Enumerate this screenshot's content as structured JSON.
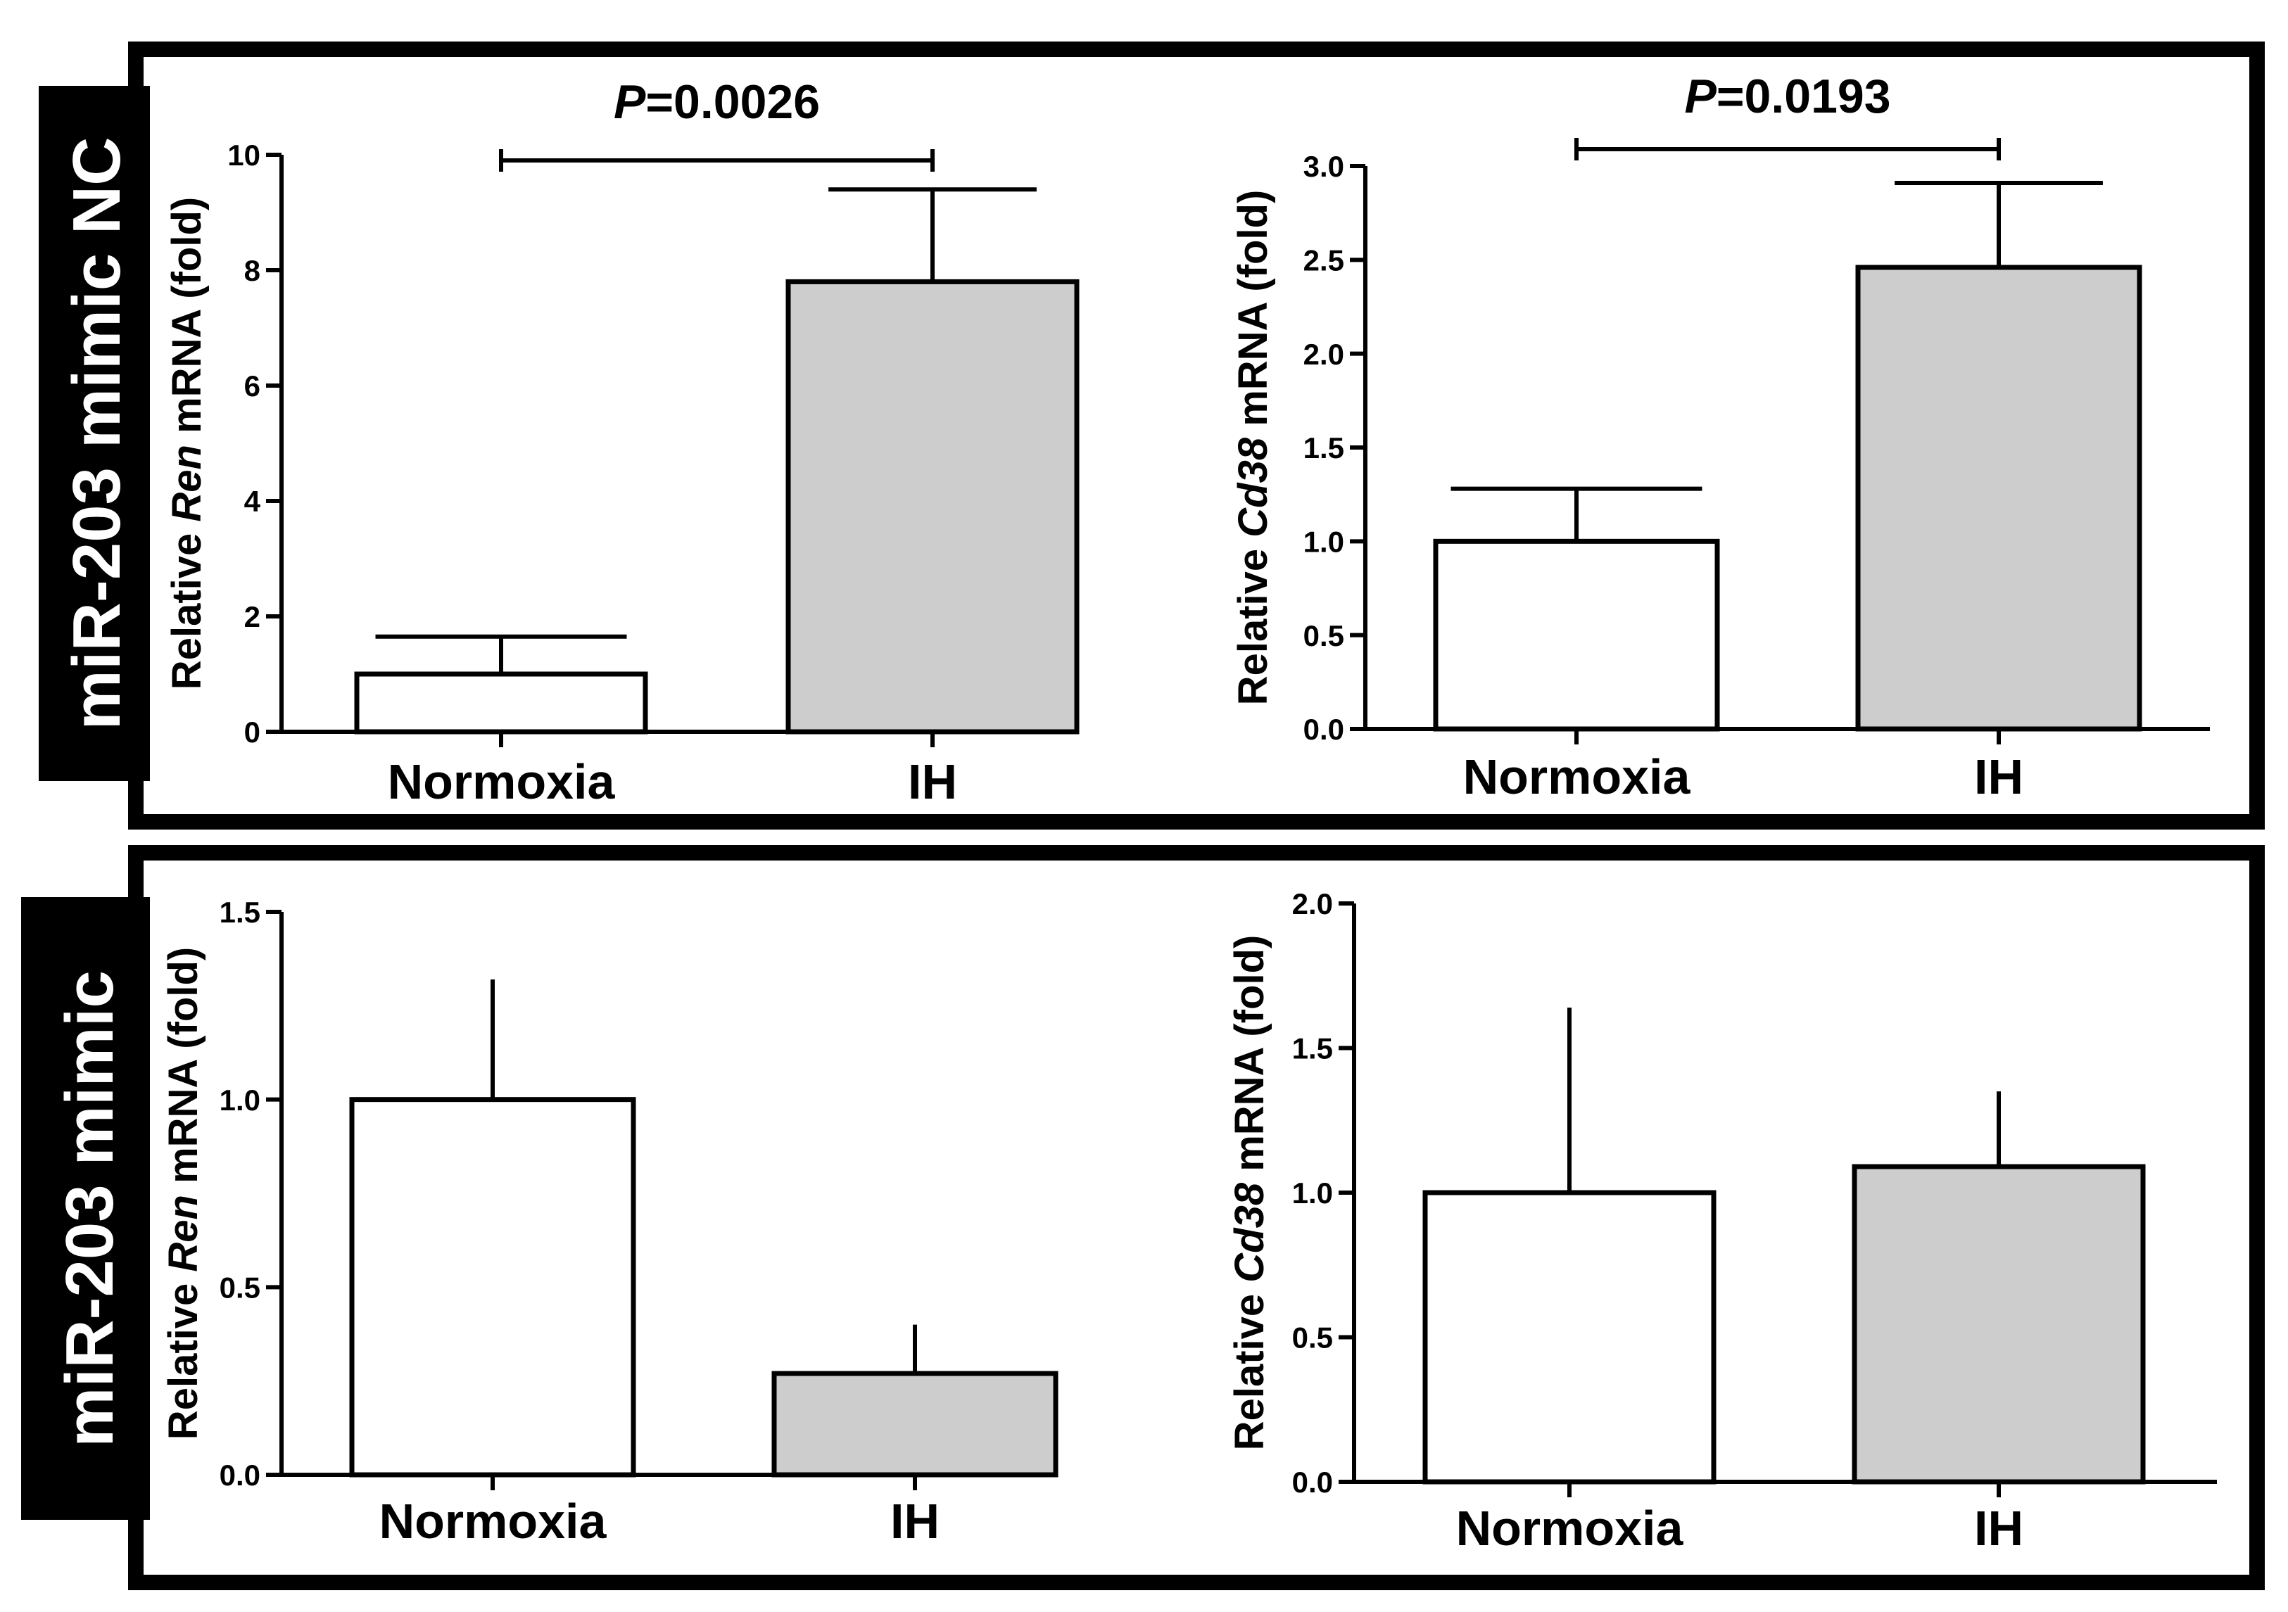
{
  "rows": [
    {
      "label": "miR-203 mimic NC"
    },
    {
      "label": "miR-203 mimic"
    }
  ],
  "colors": {
    "normoxia": "#ffffff",
    "ih": "#cdcdcd",
    "ink": "#000000"
  },
  "chart_data": [
    {
      "type": "bar",
      "ylabel": {
        "prefix": "Relative ",
        "gene": "Ren",
        "suffix": " mRNA (fold)"
      },
      "categories": [
        "Normoxia",
        "IH"
      ],
      "values": [
        1.0,
        7.8
      ],
      "errors": [
        0.65,
        1.6
      ],
      "ylim": [
        0,
        10
      ],
      "yticks": [
        "0",
        "2",
        "4",
        "6",
        "8",
        "10"
      ],
      "pvalue": {
        "text": "=0.0026",
        "label": "P"
      }
    },
    {
      "type": "bar",
      "ylabel": {
        "prefix": "Relative ",
        "gene": "Cd38",
        "suffix": " mRNA (fold)"
      },
      "categories": [
        "Normoxia",
        "IH"
      ],
      "values": [
        1.0,
        2.46
      ],
      "errors": [
        0.28,
        0.45
      ],
      "ylim": [
        0,
        3
      ],
      "yticks": [
        "0.0",
        "0.5",
        "1.0",
        "1.5",
        "2.0",
        "2.5",
        "3.0"
      ],
      "pvalue": {
        "text": "=0.0193",
        "label": "P"
      }
    },
    {
      "type": "bar",
      "ylabel": {
        "prefix": "Relative ",
        "gene": "Ren",
        "suffix": " mRNA (fold)"
      },
      "categories": [
        "Normoxia",
        "IH"
      ],
      "values": [
        1.0,
        0.27
      ],
      "errors": [
        0.32,
        0.13
      ],
      "ylim": [
        0,
        1.5
      ],
      "yticks": [
        "0.0",
        "0.5",
        "1.0",
        "1.5"
      ]
    },
    {
      "type": "bar",
      "ylabel": {
        "prefix": "Relative ",
        "gene": "Cd38",
        "suffix": " mRNA (fold)"
      },
      "categories": [
        "Normoxia",
        "IH"
      ],
      "values": [
        1.0,
        1.09
      ],
      "errors": [
        0.64,
        0.26
      ],
      "ylim": [
        0,
        2
      ],
      "yticks": [
        "0.0",
        "0.5",
        "1.0",
        "1.5",
        "2.0"
      ]
    }
  ]
}
